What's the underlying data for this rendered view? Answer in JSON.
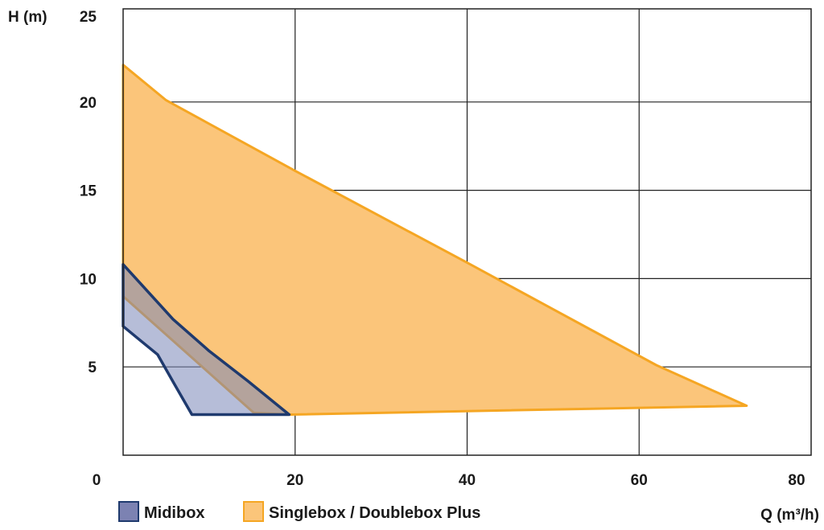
{
  "chart_data": {
    "type": "area",
    "xlabel": "Q (m³/h)",
    "ylabel": "H (m)",
    "xlim": [
      0,
      80
    ],
    "ylim": [
      0,
      25
    ],
    "x_ticks": [
      "0",
      "20",
      "40",
      "60",
      "80"
    ],
    "y_ticks": [
      "5",
      "10",
      "15",
      "20",
      "25"
    ],
    "grid": true,
    "legend_position": "bottom-left",
    "series": [
      {
        "name": "Singlebox / Doublebox Plus",
        "fill": "#fbc57a",
        "stroke": "#f5a623",
        "points": [
          [
            0,
            22.1
          ],
          [
            5,
            20.1
          ],
          [
            20,
            16.1
          ],
          [
            40,
            10.9
          ],
          [
            62,
            5.1
          ],
          [
            72.5,
            2.8
          ],
          [
            19.4,
            2.3
          ],
          [
            15.2,
            2.4
          ],
          [
            0,
            9.0
          ]
        ]
      },
      {
        "name": "Midibox",
        "fill": "#7a86b8",
        "fill_opacity": 0.55,
        "stroke": "#1f3a6e",
        "points": [
          [
            0,
            10.8
          ],
          [
            5.8,
            7.7
          ],
          [
            10,
            5.9
          ],
          [
            14.5,
            4.2
          ],
          [
            19.3,
            2.3
          ],
          [
            8,
            2.3
          ],
          [
            6,
            4.0
          ],
          [
            4,
            5.7
          ],
          [
            2,
            6.5
          ],
          [
            0,
            7.3
          ]
        ]
      }
    ]
  }
}
